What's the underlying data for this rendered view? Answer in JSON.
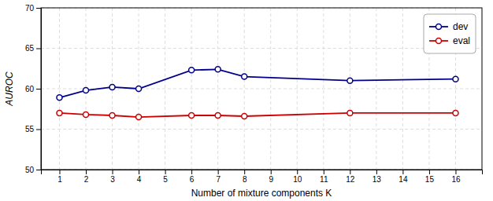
{
  "chart_data": {
    "type": "line",
    "xlabel": "Number of mixture components K",
    "ylabel": "AUROC",
    "x": [
      1,
      2,
      3,
      4,
      6,
      7,
      8,
      12,
      16
    ],
    "series": [
      {
        "name": "dev",
        "color": "#00008B",
        "marker": "circle",
        "values": [
          58.9,
          59.8,
          60.2,
          60.0,
          62.3,
          62.4,
          61.5,
          61.0,
          61.2
        ]
      },
      {
        "name": "eval",
        "color": "#CC0000",
        "marker": "circle",
        "values": [
          57.0,
          56.8,
          56.7,
          56.5,
          56.7,
          56.7,
          56.6,
          57.0,
          57.0
        ]
      }
    ],
    "xlim": [
      0.3,
      17
    ],
    "ylim": [
      50,
      70
    ],
    "xticks": [
      1,
      2,
      3,
      4,
      5,
      6,
      7,
      8,
      9,
      10,
      11,
      12,
      13,
      14,
      15,
      16
    ],
    "yticks": [
      50,
      55,
      60,
      65,
      70
    ],
    "grid": true,
    "legend": "upper right"
  }
}
